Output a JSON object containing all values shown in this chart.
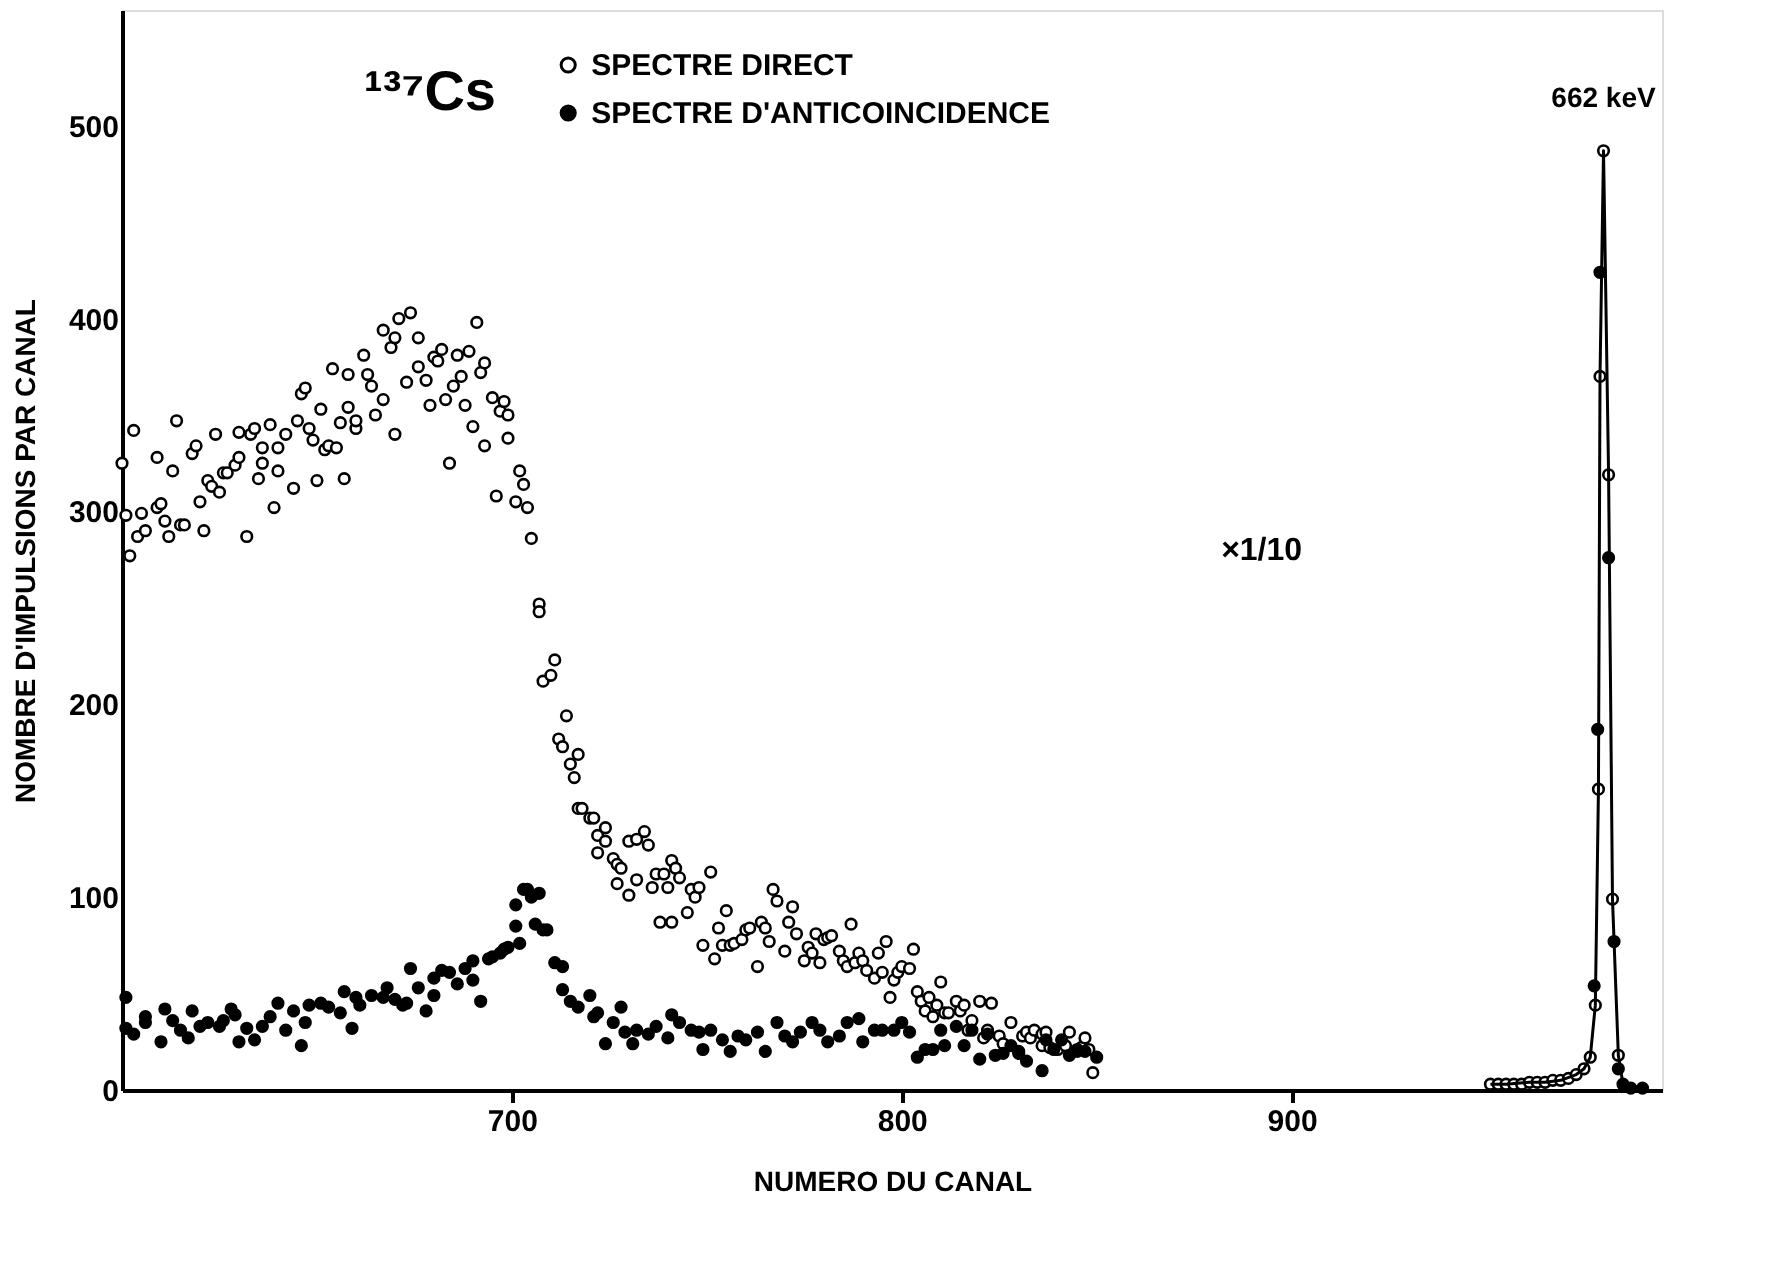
{
  "chart_data": {
    "type": "scatter",
    "xlabel": "NUMERO DU CANAL",
    "ylabel": "NOMBRE D'IMPULSIONS PAR CANAL",
    "xlim": [
      600,
      995
    ],
    "xticks": [
      700,
      800,
      900
    ],
    "ylim": [
      0,
      560
    ],
    "yticks": [
      0,
      100,
      200,
      300,
      400,
      500
    ],
    "grid": false,
    "legend": "top",
    "marker": "circle",
    "annotations": [
      "¹³⁷Cs",
      {
        "text": "662 keV",
        "x": 980,
        "y": 487
      },
      "×1/10"
    ],
    "series": [
      {
        "name": "SPECTRE DIRECT",
        "color": "#000000",
        "x": [
          600,
          601,
          602,
          603,
          604,
          605,
          606,
          609,
          609,
          610,
          611,
          612,
          613,
          614,
          615,
          616,
          618,
          619,
          620,
          621,
          622,
          623,
          624,
          625,
          626,
          627,
          629,
          630,
          630,
          632,
          633,
          634,
          635,
          636,
          636,
          638,
          639,
          640,
          640,
          642,
          644,
          645,
          646,
          647,
          648,
          649,
          650,
          651,
          652,
          653,
          654,
          655,
          656,
          657,
          658,
          658,
          660,
          660,
          662,
          663,
          664,
          665,
          667,
          667,
          669,
          670,
          670,
          671,
          673,
          674,
          676,
          676,
          678,
          679,
          680,
          681,
          682,
          683,
          684,
          685,
          686,
          687,
          688,
          689,
          690,
          691,
          692,
          693,
          693,
          695,
          696,
          697,
          698,
          699,
          699,
          701,
          702,
          703,
          704,
          705,
          707,
          707,
          708,
          710,
          711,
          712,
          713,
          714,
          715,
          716,
          717,
          717,
          718,
          720,
          721,
          722,
          722,
          724,
          724,
          726,
          727,
          728,
          727,
          730,
          730,
          732,
          732,
          734,
          735,
          736,
          737,
          738,
          739,
          740,
          741,
          741,
          742,
          743,
          745,
          746,
          747,
          748,
          749,
          751,
          752,
          753,
          754,
          755,
          756,
          757,
          759,
          760,
          761,
          763,
          764,
          765,
          766,
          767,
          768,
          770,
          771,
          772,
          773,
          775,
          776,
          777,
          778,
          779,
          780,
          781,
          782,
          784,
          785,
          787,
          786,
          788,
          789,
          790,
          791,
          793,
          794,
          795,
          796,
          797,
          798,
          799,
          800,
          802,
          803,
          804,
          805,
          806,
          807,
          808,
          809,
          810,
          811,
          812,
          814,
          815,
          816,
          817,
          818,
          820,
          821,
          822,
          823,
          825,
          826,
          828,
          830,
          831,
          832,
          833,
          834,
          836,
          836,
          837,
          838,
          840,
          842,
          843,
          845,
          846,
          847,
          848,
          849,
          951,
          953,
          955,
          957,
          959,
          961,
          963,
          965,
          967,
          969,
          971,
          973,
          975,
          976.6,
          977.9,
          978.7,
          979.1,
          980,
          981.3,
          982.3,
          983.8
        ],
        "values": [
          325,
          298,
          277,
          342,
          287,
          299,
          290,
          328,
          302,
          304,
          295,
          287,
          321,
          347,
          293,
          293,
          330,
          334,
          305,
          290,
          316,
          313,
          340,
          310,
          320,
          320,
          324,
          341,
          328,
          287,
          340,
          343,
          317,
          325,
          333,
          345,
          302,
          321,
          333,
          340,
          312,
          347,
          361,
          364,
          343,
          337,
          316,
          353,
          332,
          334,
          374,
          333,
          346,
          317,
          354,
          371,
          343,
          347,
          381,
          371,
          365,
          350,
          358,
          394,
          385,
          390,
          340,
          400,
          367,
          403,
          375,
          390,
          368,
          355,
          380,
          378,
          384,
          358,
          325,
          365,
          381,
          370,
          355,
          383,
          344,
          398,
          372,
          334,
          377,
          359,
          308,
          352,
          357,
          338,
          350,
          305,
          321,
          314,
          302,
          286,
          252,
          248,
          212,
          215,
          223,
          182,
          178,
          194,
          169,
          162,
          174,
          146,
          146,
          141,
          141,
          132,
          123,
          136,
          129,
          120,
          117,
          115,
          107,
          101,
          129,
          109,
          130,
          134,
          127,
          105,
          112,
          87,
          112,
          105,
          87,
          119,
          115,
          110,
          92,
          104,
          100,
          105,
          75,
          113,
          68,
          84,
          75,
          93,
          75,
          76,
          78,
          83,
          84,
          64,
          87,
          84,
          77,
          104,
          98,
          72,
          87,
          95,
          81,
          67,
          74,
          71,
          81,
          66,
          78,
          79,
          80,
          72,
          67,
          86,
          64,
          66,
          71,
          67,
          62,
          58,
          71,
          61,
          77,
          48,
          57,
          61,
          64,
          63,
          73,
          51,
          46,
          41,
          48,
          38,
          44,
          56,
          40,
          40,
          46,
          41,
          44,
          31,
          36,
          46,
          27,
          31,
          45,
          28,
          24,
          35,
          19,
          28,
          30,
          27,
          31,
          29,
          23,
          30,
          22,
          21,
          23,
          30,
          20,
          22,
          27,
          21,
          9,
          3,
          3,
          3,
          3,
          3,
          4,
          4,
          4,
          5,
          5,
          6,
          8,
          11,
          17,
          44,
          156,
          370,
          487,
          319,
          99,
          18
        ]
      },
      {
        "name": "SPECTRE D'ANTICOINCIDENCE",
        "color": "#000000",
        "x": [
          601,
          601,
          603,
          606,
          606,
          610,
          611,
          613,
          615,
          617,
          618,
          620,
          622,
          625,
          626,
          628,
          629,
          630,
          632,
          634,
          636,
          638,
          640,
          642,
          644,
          646,
          647,
          648,
          651,
          653,
          656,
          657,
          659,
          660,
          661,
          664,
          667,
          668,
          670,
          672,
          673,
          674,
          676,
          678,
          680,
          680,
          682,
          684,
          686,
          688,
          690,
          690,
          692,
          694,
          695,
          697,
          698,
          699,
          701,
          701,
          702,
          703,
          704,
          705,
          706,
          707,
          708,
          709,
          711,
          713,
          713,
          715,
          717,
          720,
          721,
          722,
          724,
          726,
          728,
          729,
          731,
          732,
          735,
          737,
          740,
          741,
          743,
          746,
          748,
          749,
          751,
          754,
          756,
          758,
          760,
          763,
          765,
          768,
          770,
          772,
          774,
          777,
          779,
          781,
          784,
          786,
          789,
          790,
          793,
          795,
          798,
          800,
          802,
          804,
          806,
          808,
          810,
          811,
          814,
          816,
          818,
          820,
          822,
          824,
          826,
          828,
          830,
          832,
          836,
          837,
          839,
          841,
          843,
          845,
          847,
          850,
          977.6,
          978.5,
          979.1,
          981.3,
          982.7,
          983.8,
          985,
          987,
          990
        ],
        "values": [
          48,
          32,
          29,
          35,
          38,
          25,
          42,
          36,
          31,
          27,
          41,
          33,
          35,
          33,
          36,
          42,
          39,
          25,
          32,
          26,
          33,
          38,
          45,
          31,
          41,
          23,
          35,
          44,
          45,
          43,
          40,
          51,
          32,
          48,
          44,
          49,
          48,
          53,
          47,
          44,
          45,
          63,
          53,
          41,
          49,
          58,
          62,
          61,
          55,
          63,
          57,
          67,
          46,
          68,
          69,
          71,
          73,
          74,
          85,
          96,
          76,
          104,
          104,
          100,
          86,
          102,
          83,
          83,
          66,
          64,
          52,
          46,
          43,
          49,
          38,
          40,
          24,
          35,
          43,
          30,
          24,
          31,
          29,
          33,
          27,
          39,
          35,
          31,
          30,
          21,
          31,
          26,
          20,
          28,
          26,
          30,
          20,
          35,
          28,
          25,
          30,
          35,
          31,
          25,
          28,
          35,
          37,
          25,
          31,
          31,
          31,
          35,
          30,
          17,
          21,
          21,
          31,
          23,
          33,
          23,
          31,
          16,
          29,
          18,
          19,
          23,
          20,
          15,
          10,
          26,
          21,
          26,
          18,
          21,
          20,
          17,
          54,
          187,
          424,
          276,
          77,
          11,
          3,
          1,
          1
        ]
      },
      {
        "type": "line",
        "color": "#000000",
        "marker": "none",
        "x": [
          951,
          955,
          961,
          965,
          969,
          973,
          975,
          976.6,
          977.9,
          978.7,
          979.1,
          980,
          981.3,
          982.3,
          983.8,
          985,
          987,
          990
        ],
        "values": [
          3,
          3,
          4,
          4,
          5,
          8,
          11,
          17,
          44,
          156,
          370,
          487,
          319,
          99,
          18,
          3,
          1,
          1
        ]
      }
    ]
  }
}
